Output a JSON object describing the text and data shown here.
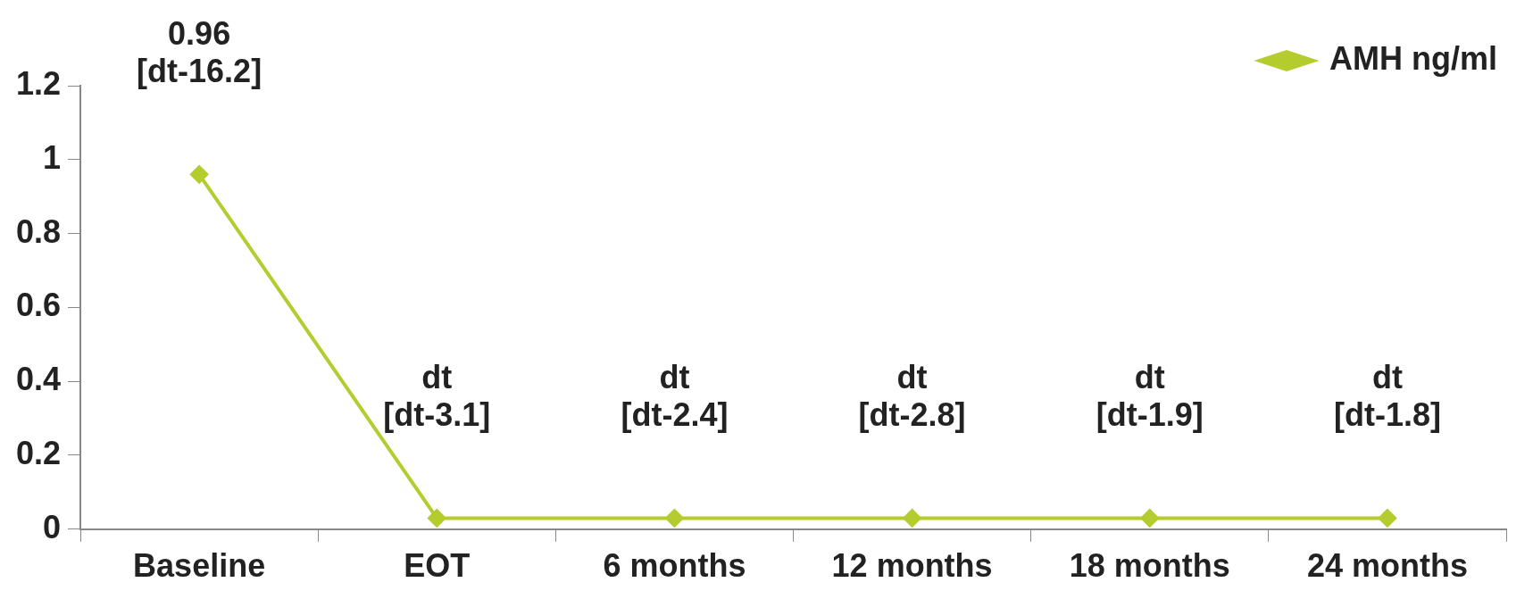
{
  "chart_data": {
    "type": "line",
    "categories": [
      "Baseline",
      "EOT",
      "6 months",
      "12 months",
      "18 months",
      "24 months"
    ],
    "series": [
      {
        "name": "AMH ng/ml",
        "color": "#b5cc2e",
        "values": [
          0.96,
          0.03,
          0.03,
          0.03,
          0.03,
          0.03
        ],
        "value_labels": [
          "0.96\n[dt-16.2]",
          "dt\n[dt-3.1]",
          "dt\n[dt-2.4]",
          "dt\n[dt-2.8]",
          "dt\n[dt-1.9]",
          "dt\n[dt-1.8]"
        ]
      }
    ],
    "ylim": [
      0,
      1.2
    ],
    "yticks": [
      0,
      0.2,
      0.4,
      0.6,
      0.8,
      1,
      1.2
    ],
    "grid": false,
    "legend": "top right",
    "marker": "diamond",
    "line_style": "solid"
  }
}
